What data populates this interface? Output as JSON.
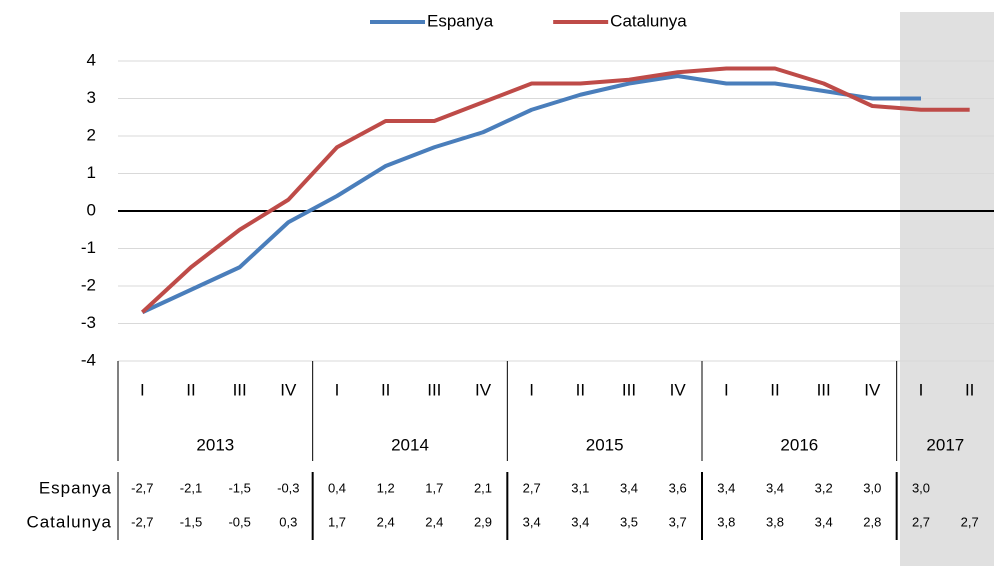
{
  "chart_data": {
    "type": "line",
    "categories": [
      "I",
      "II",
      "III",
      "IV",
      "I",
      "II",
      "III",
      "IV",
      "I",
      "II",
      "III",
      "IV",
      "I",
      "II",
      "III",
      "IV",
      "I",
      "II"
    ],
    "years": [
      "2013",
      "2014",
      "2015",
      "2016",
      "2017"
    ],
    "series": [
      {
        "name": "Espanya",
        "color": "#4a7ebb",
        "values": [
          -2.7,
          -2.1,
          -1.5,
          -0.3,
          0.4,
          1.2,
          1.7,
          2.1,
          2.7,
          3.1,
          3.4,
          3.6,
          3.4,
          3.4,
          3.2,
          3.0,
          3.0,
          null
        ],
        "value_labels": [
          "-2,7",
          "-2,1",
          "-1,5",
          "-0,3",
          "0,4",
          "1,2",
          "1,7",
          "2,1",
          "2,7",
          "3,1",
          "3,4",
          "3,6",
          "3,4",
          "3,4",
          "3,2",
          "3,0",
          "3,0",
          null
        ]
      },
      {
        "name": "Catalunya",
        "color": "#be4b48",
        "values": [
          -2.7,
          -1.5,
          -0.5,
          0.3,
          1.7,
          2.4,
          2.4,
          2.9,
          3.4,
          3.4,
          3.5,
          3.7,
          3.8,
          3.8,
          3.4,
          2.8,
          2.7,
          2.7
        ],
        "value_labels": [
          "-2,7",
          "-1,5",
          "-0,5",
          "0,3",
          "1,7",
          "2,4",
          "2,4",
          "2,9",
          "3,4",
          "3,4",
          "3,5",
          "3,7",
          "3,8",
          "3,8",
          "3,4",
          "2,8",
          "2,7",
          "2,7"
        ]
      }
    ],
    "ylim": [
      -4,
      4
    ],
    "yticks": [
      4,
      3,
      2,
      1,
      0,
      -1,
      -2,
      -3,
      -4
    ],
    "grid": true,
    "legend": "top"
  }
}
